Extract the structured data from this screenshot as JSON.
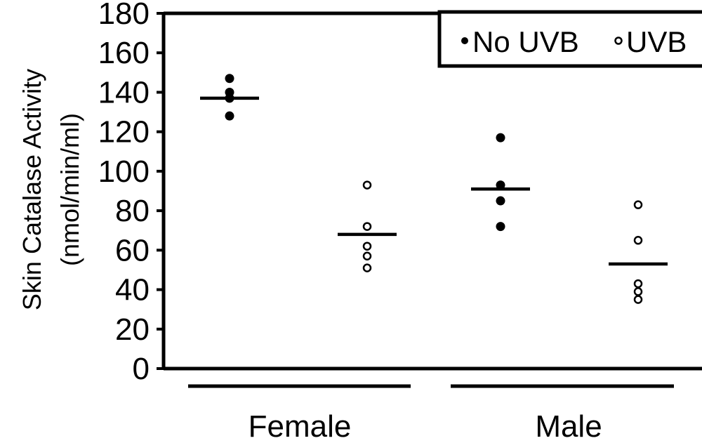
{
  "chart_data": {
    "type": "scatter",
    "ylabel_line1": "Skin Catalase Activity",
    "ylabel_line2": "(nmol/min/ml)",
    "ylim": [
      0,
      180
    ],
    "yticks": [
      "0",
      "20",
      "40",
      "60",
      "80",
      "100",
      "120",
      "140",
      "160",
      "180"
    ],
    "yvalues": [
      0,
      20,
      40,
      60,
      80,
      100,
      120,
      140,
      160,
      180
    ],
    "groups": [
      {
        "label": "Female"
      },
      {
        "label": "Male"
      }
    ],
    "legend": {
      "placement": "top-right",
      "filled_label": "No UVB",
      "open_label": "UVB"
    },
    "series": [
      {
        "name": "No UVB",
        "marker": "filled",
        "group": 0,
        "points": [
          147,
          140,
          137,
          128
        ],
        "mean": 137
      },
      {
        "name": "UVB",
        "marker": "open",
        "group": 0,
        "points": [
          93,
          72,
          62,
          57,
          51
        ],
        "mean": 68
      },
      {
        "name": "No UVB",
        "marker": "filled",
        "group": 1,
        "points": [
          117,
          93,
          85,
          72
        ],
        "mean": 91
      },
      {
        "name": "UVB",
        "marker": "open",
        "group": 1,
        "points": [
          83,
          65,
          43,
          39,
          35
        ],
        "mean": 53
      }
    ],
    "grid": false
  }
}
